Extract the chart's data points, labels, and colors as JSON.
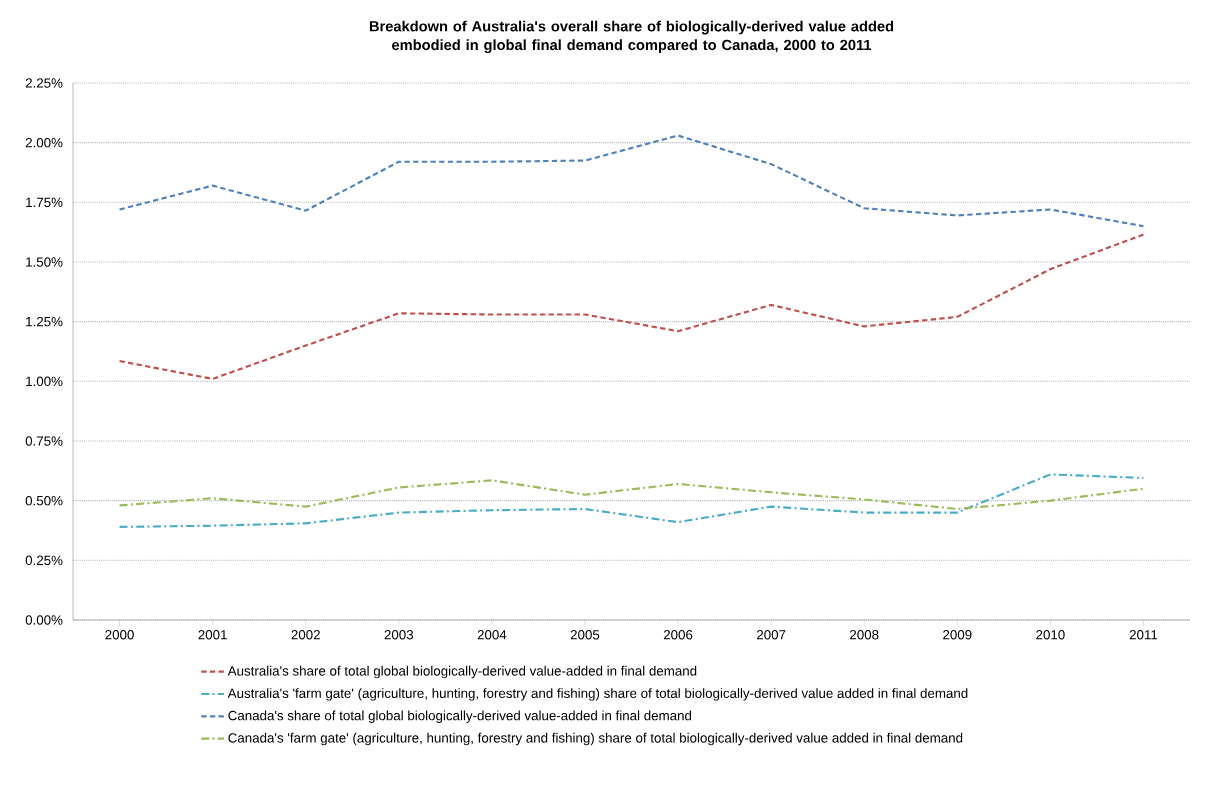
{
  "chart_data": {
    "type": "line",
    "title": "Breakdown of Australia's overall share of biologically-derived value added embodied in global final demand compared to Canada, 2000 to 2011",
    "categories": [
      "2000",
      "2001",
      "2002",
      "2003",
      "2004",
      "2005",
      "2006",
      "2007",
      "2008",
      "2009",
      "2010",
      "2011"
    ],
    "series": [
      {
        "name": "Australia's share of total global biologically-derived value-added in final demand",
        "color": "#c0504d",
        "line_style": "dashed",
        "values": [
          1.085,
          1.01,
          1.15,
          1.285,
          1.28,
          1.28,
          1.21,
          1.32,
          1.23,
          1.27,
          1.47,
          1.615
        ]
      },
      {
        "name": "Australia's 'farm gate' (agriculture, hunting, forestry and fishing) share of total biologically-derived value added in final demand",
        "color": "#4bacc6",
        "line_style": "dashdot",
        "values": [
          0.39,
          0.395,
          0.405,
          0.45,
          0.46,
          0.465,
          0.41,
          0.475,
          0.45,
          0.45,
          0.61,
          0.595
        ]
      },
      {
        "name": "Canada's  share of total global biologically-derived value-added in final demand",
        "color": "#4f81bd",
        "line_style": "dashed",
        "values": [
          1.72,
          1.82,
          1.715,
          1.92,
          1.92,
          1.925,
          2.03,
          1.91,
          1.725,
          1.695,
          1.72,
          1.65
        ]
      },
      {
        "name": "Canada's 'farm gate' (agriculture, hunting, forestry and fishing) share of total biologically-derived value added in final demand",
        "color": "#9bbb59",
        "line_style": "dashdot",
        "values": [
          0.48,
          0.51,
          0.475,
          0.555,
          0.585,
          0.525,
          0.57,
          0.535,
          0.505,
          0.465,
          0.5,
          0.55
        ]
      }
    ],
    "ylim": [
      0,
      2.25
    ],
    "yticks": [
      {
        "value": 0,
        "label": "0.00%"
      },
      {
        "value": 0.25,
        "label": "0.25%"
      },
      {
        "value": 0.5,
        "label": "0.50%"
      },
      {
        "value": 0.75,
        "label": "0.75%"
      },
      {
        "value": 1,
        "label": "1.00%"
      },
      {
        "value": 1.25,
        "label": "1.25%"
      },
      {
        "value": 1.5,
        "label": "1.50%"
      },
      {
        "value": 1.75,
        "label": "1.75%"
      },
      {
        "value": 2,
        "label": "2.00%"
      },
      {
        "value": 2.25,
        "label": "2.25%"
      }
    ],
    "grid": "y",
    "legend": "bottom",
    "marker": "none"
  }
}
